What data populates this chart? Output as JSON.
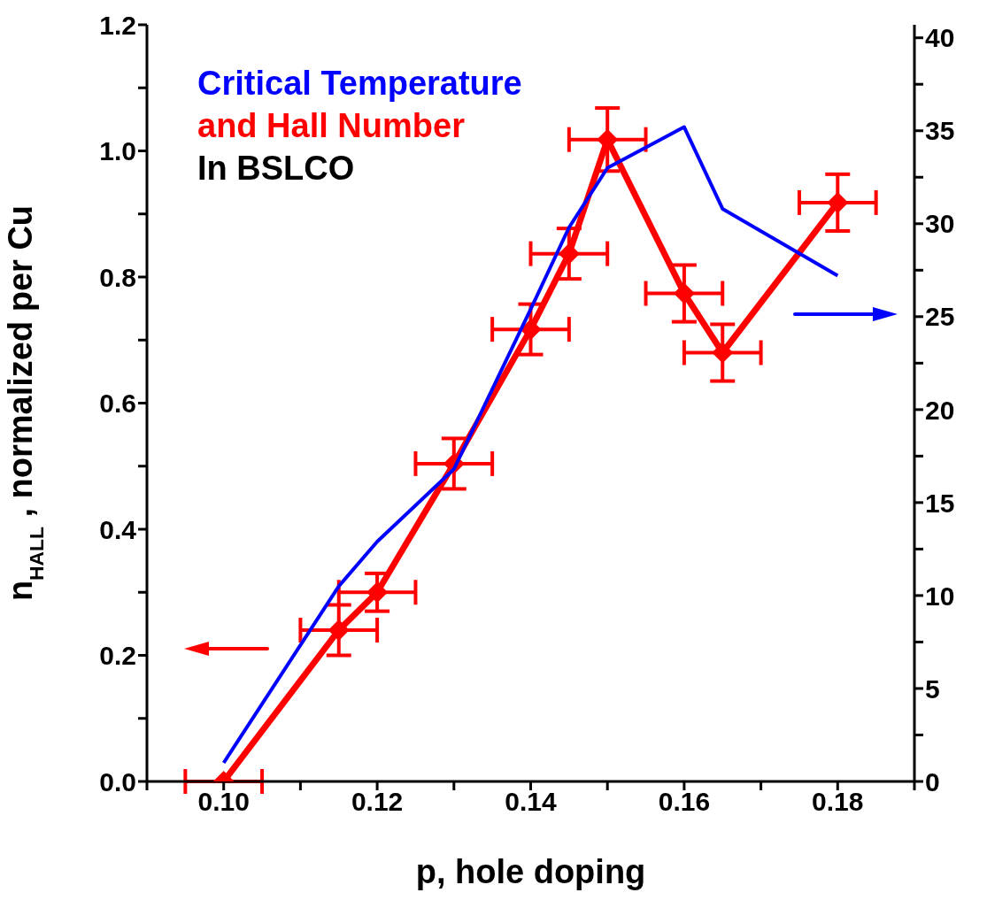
{
  "chart_data": {
    "type": "line",
    "xlabel": "p, hole doping",
    "ylabel": "n$_{HALL}$, normalized per Cu",
    "xlim": [
      0.09,
      0.19
    ],
    "xticks": [
      {
        "value": 0.09,
        "label": null
      },
      {
        "value": 0.1,
        "label": "0.10"
      },
      {
        "value": 0.11,
        "label": null
      },
      {
        "value": 0.12,
        "label": "0.12"
      },
      {
        "value": 0.13,
        "label": null
      },
      {
        "value": 0.14,
        "label": "0.14"
      },
      {
        "value": 0.15,
        "label": null
      },
      {
        "value": 0.16,
        "label": "0.16"
      },
      {
        "value": 0.17,
        "label": null
      },
      {
        "value": 0.18,
        "label": "0.18"
      },
      {
        "value": 0.19,
        "label": null
      }
    ],
    "ylim": [
      0,
      1.2
    ],
    "yticks": [
      {
        "value": 0,
        "label": "0.0"
      },
      {
        "value": 0.1,
        "label": null
      },
      {
        "value": 0.2,
        "label": "0.2"
      },
      {
        "value": 0.3,
        "label": null
      },
      {
        "value": 0.4,
        "label": "0.4"
      },
      {
        "value": 0.5,
        "label": null
      },
      {
        "value": 0.6,
        "label": "0.6"
      },
      {
        "value": 0.7,
        "label": null
      },
      {
        "value": 0.8,
        "label": "0.8"
      },
      {
        "value": 0.9,
        "label": null
      },
      {
        "value": 1,
        "label": "1.0"
      },
      {
        "value": 1.1,
        "label": null
      },
      {
        "value": 1.2,
        "label": "1.2"
      }
    ],
    "y2lim": [
      0,
      40.7
    ],
    "y2ticks": [
      0,
      {
        "value": 2.5,
        "label": null
      },
      5,
      {
        "value": 7.5,
        "label": null
      },
      10,
      {
        "value": 12.5,
        "label": null
      },
      15,
      {
        "value": 17.5,
        "label": null
      },
      20,
      {
        "value": 22.5,
        "label": null
      },
      25,
      {
        "value": 27.5,
        "label": null
      },
      30,
      {
        "value": 32.5,
        "label": null
      },
      35,
      {
        "value": 37.5,
        "label": null
      },
      40
    ],
    "marker": "diamond",
    "legend": false,
    "grid": false,
    "annotations": [
      "In BSLCO"
    ],
    "series": [
      {
        "name": "Critical Temperature",
        "axis": "y2",
        "color": "#0000ff",
        "marker": "none",
        "x": [
          0.1,
          0.115,
          0.12,
          0.13,
          0.14,
          0.145,
          0.15,
          0.16,
          0.165,
          0.18
        ],
        "values": [
          1.0,
          10.5,
          12.9,
          16.8,
          25.4,
          29.8,
          33.0,
          35.2,
          30.8,
          27.2
        ]
      },
      {
        "name": "and Hall Number",
        "color": "#ff0000",
        "x": [
          0.1,
          0.115,
          0.12,
          0.13,
          0.14,
          0.145,
          0.15,
          0.16,
          0.165,
          0.18
        ],
        "values": [
          0,
          0.24,
          0.3,
          0.504,
          0.717,
          0.837,
          1.018,
          0.774,
          0.68,
          0.918
        ],
        "errors": [
          null,
          0.04,
          0.03,
          0.04,
          0.04,
          0.04,
          0.05,
          0.045,
          0.045,
          0.045
        ],
        "xerrors": [
          0.005,
          0.005,
          0.005,
          0.005,
          0.005,
          0.005,
          0.005,
          0.005,
          0.005,
          0.005
        ]
      }
    ]
  }
}
